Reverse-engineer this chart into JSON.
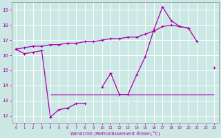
{
  "xlabel": "Windchill (Refroidissement éolien,°C)",
  "background_color": "#cce8e4",
  "grid_color": "#ffffff",
  "line_color": "#aa00aa",
  "x_values": [
    0,
    1,
    2,
    3,
    4,
    5,
    6,
    7,
    8,
    9,
    10,
    11,
    12,
    13,
    14,
    15,
    16,
    17,
    18,
    19,
    20,
    21,
    22,
    23
  ],
  "series1": [
    16.4,
    16.1,
    16.2,
    16.3,
    11.9,
    12.4,
    12.5,
    12.8,
    12.8,
    null,
    13.9,
    14.8,
    13.4,
    13.4,
    14.7,
    15.9,
    17.7,
    19.2,
    18.3,
    17.9,
    17.8,
    16.9,
    null,
    15.2
  ],
  "series2": [
    16.4,
    16.5,
    16.6,
    16.6,
    16.7,
    16.7,
    16.8,
    16.8,
    16.9,
    16.9,
    17.0,
    17.1,
    17.1,
    17.2,
    17.2,
    17.4,
    17.6,
    17.9,
    18.0,
    17.9,
    17.8,
    null,
    null,
    null
  ],
  "hline_y": 13.4,
  "hline_x_start": 4,
  "hline_x_end": 23,
  "ylim": [
    11.5,
    19.5
  ],
  "xlim": [
    -0.5,
    23.5
  ],
  "yticks": [
    12,
    13,
    14,
    15,
    16,
    17,
    18,
    19
  ],
  "xticks": [
    0,
    1,
    2,
    3,
    4,
    5,
    6,
    7,
    8,
    9,
    10,
    11,
    12,
    13,
    14,
    15,
    16,
    17,
    18,
    19,
    20,
    21,
    22,
    23
  ]
}
